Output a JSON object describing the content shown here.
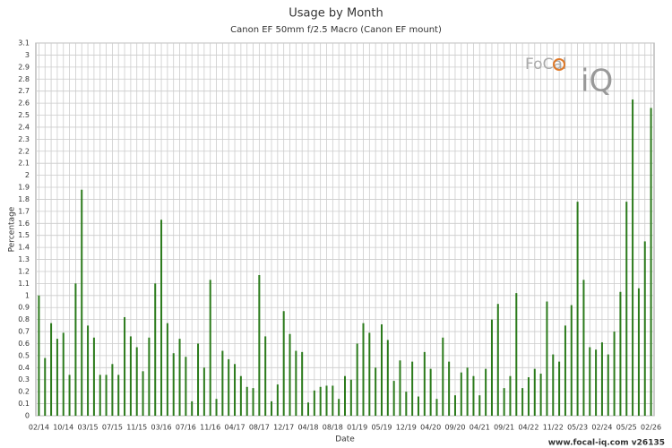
{
  "chart_data": {
    "type": "bar",
    "title": "Usage by Month",
    "subtitle": "Canon EF 50mm f/2.5 Macro (Canon EF mount)",
    "x_label": "Date",
    "y_label": "Percentage",
    "color": "#2b7a1b",
    "grid": true,
    "logo": {
      "top": "FoCal",
      "bottom": "iQ"
    },
    "footer": "www.focal-iq.com  v26135",
    "ylim": [
      0,
      3.1
    ],
    "yticks": [
      0,
      0.1,
      0.2,
      0.3,
      0.4,
      0.5,
      0.6,
      0.7,
      0.8,
      0.9,
      1,
      1.1,
      1.2,
      1.3,
      1.4,
      1.5,
      1.6,
      1.7,
      1.8,
      1.9,
      2,
      2.1,
      2.2,
      2.3,
      2.4,
      2.5,
      2.6,
      2.7,
      2.8,
      2.9,
      3,
      3.1
    ],
    "categories": [
      "02/14",
      null,
      null,
      null,
      "10/14",
      null,
      null,
      null,
      "03/15",
      null,
      null,
      null,
      "07/15",
      null,
      null,
      null,
      "11/15",
      null,
      null,
      null,
      "03/16",
      null,
      null,
      null,
      "07/16",
      null,
      null,
      null,
      "11/16",
      null,
      null,
      null,
      "04/17",
      null,
      null,
      null,
      "08/17",
      null,
      null,
      null,
      "12/17",
      null,
      null,
      null,
      "04/18",
      null,
      null,
      null,
      "08/18",
      null,
      null,
      null,
      "01/19",
      null,
      null,
      null,
      "05/19",
      null,
      null,
      null,
      "12/19",
      null,
      null,
      null,
      "04/20",
      null,
      null,
      null,
      "09/20",
      null,
      null,
      null,
      "04/21",
      null,
      null,
      null,
      "09/21",
      null,
      null,
      null,
      "04/22",
      null,
      null,
      null,
      "11/22",
      null,
      null,
      null,
      "05/23",
      null,
      null,
      null,
      "02/24",
      null,
      null,
      null,
      "05/25",
      null,
      null,
      null,
      "02/26"
    ],
    "values": [
      1.0,
      0.48,
      0.77,
      0.64,
      0.69,
      0.34,
      1.1,
      1.88,
      0.75,
      0.65,
      0.34,
      0.34,
      0.43,
      0.34,
      0.82,
      0.66,
      0.57,
      0.37,
      0.65,
      1.1,
      1.63,
      0.77,
      0.52,
      0.64,
      0.49,
      0.12,
      0.6,
      0.4,
      1.13,
      0.14,
      0.54,
      0.47,
      0.43,
      0.33,
      0.24,
      0.23,
      1.17,
      0.66,
      0.12,
      0.26,
      0.87,
      0.68,
      0.54,
      0.53,
      0.11,
      0.21,
      0.24,
      0.25,
      0.25,
      0.14,
      0.33,
      0.3,
      0.6,
      0.77,
      0.69,
      0.4,
      0.76,
      0.63,
      0.29,
      0.46,
      0.2,
      0.45,
      0.16,
      0.53,
      0.39,
      0.14,
      0.65,
      0.45,
      0.17,
      0.36,
      0.4,
      0.33,
      0.17,
      0.39,
      0.8,
      0.93,
      0.23,
      0.33,
      1.02,
      0.23,
      0.32,
      0.39,
      0.35,
      0.95,
      0.51,
      0.45,
      0.75,
      0.92,
      1.78,
      1.13,
      0.57,
      0.55,
      0.61,
      0.51,
      0.7,
      1.03,
      1.78,
      2.63,
      1.06,
      1.45,
      2.56
    ]
  }
}
